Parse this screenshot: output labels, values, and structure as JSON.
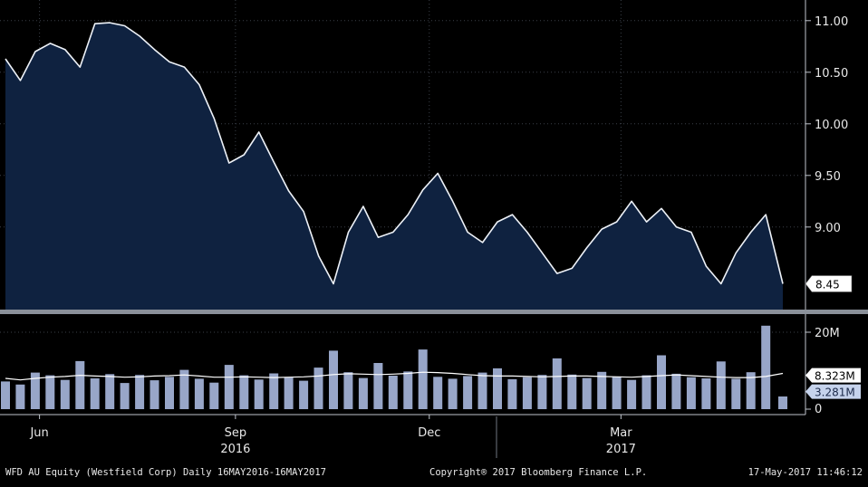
{
  "chart_data": [
    {
      "type": "area",
      "y_ticks": [
        "11.00",
        "10.50",
        "10.00",
        "9.50",
        "9.00"
      ],
      "ylim": [
        8.2,
        11.2
      ],
      "last_value_label": "8.45",
      "x_month_labels": [
        "Jun",
        "Sep",
        "Dec",
        "Mar"
      ],
      "x_year_labels": [
        "2016",
        "2017"
      ],
      "x": [
        "2016-05-16",
        "2016-05-23",
        "2016-05-30",
        "2016-06-06",
        "2016-06-13",
        "2016-06-20",
        "2016-06-27",
        "2016-07-04",
        "2016-07-11",
        "2016-07-18",
        "2016-07-25",
        "2016-08-01",
        "2016-08-08",
        "2016-08-15",
        "2016-08-22",
        "2016-08-29",
        "2016-09-05",
        "2016-09-12",
        "2016-09-19",
        "2016-09-26",
        "2016-10-03",
        "2016-10-10",
        "2016-10-17",
        "2016-10-24",
        "2016-10-31",
        "2016-11-07",
        "2016-11-14",
        "2016-11-21",
        "2016-11-28",
        "2016-12-05",
        "2016-12-12",
        "2016-12-19",
        "2016-12-26",
        "2017-01-02",
        "2017-01-09",
        "2017-01-16",
        "2017-01-23",
        "2017-01-30",
        "2017-02-06",
        "2017-02-13",
        "2017-02-20",
        "2017-02-27",
        "2017-03-06",
        "2017-03-13",
        "2017-03-20",
        "2017-03-27",
        "2017-04-03",
        "2017-04-10",
        "2017-04-17",
        "2017-04-24",
        "2017-05-01",
        "2017-05-08",
        "2017-05-16"
      ],
      "values": [
        10.63,
        10.42,
        10.7,
        10.78,
        10.72,
        10.55,
        10.97,
        10.98,
        10.95,
        10.85,
        10.72,
        10.6,
        10.55,
        10.38,
        10.05,
        9.62,
        9.7,
        9.92,
        9.63,
        9.35,
        9.15,
        8.72,
        8.45,
        8.95,
        9.2,
        8.9,
        8.95,
        9.12,
        9.36,
        9.52,
        9.25,
        8.95,
        8.85,
        9.05,
        9.12,
        8.95,
        8.75,
        8.55,
        8.6,
        8.8,
        8.98,
        9.05,
        9.25,
        9.05,
        9.18,
        9.0,
        8.95,
        8.62,
        8.45,
        8.75,
        8.95,
        9.12,
        8.45
      ]
    },
    {
      "type": "bar",
      "y_ticks": [
        "20M"
      ],
      "zero_tick": "0",
      "ylim": [
        0,
        24
      ],
      "avg_label": "8.323M",
      "last_label": "3.281M",
      "series": [
        {
          "values": [
            7.2,
            6.4,
            9.5,
            8.8,
            7.6,
            12.5,
            8.0,
            9.1,
            6.8,
            8.9,
            7.5,
            8.4,
            10.2,
            7.9,
            6.9,
            11.5,
            8.8,
            7.7,
            9.3,
            8.2,
            7.4,
            10.8,
            15.2,
            9.6,
            8.1,
            12.0,
            8.7,
            9.8,
            15.5,
            8.4,
            7.9,
            8.6,
            9.5,
            10.6,
            7.8,
            8.3,
            8.9,
            13.2,
            9.0,
            8.1,
            9.7,
            8.5,
            7.6,
            8.8,
            14.0,
            9.2,
            8.3,
            8.0,
            12.4,
            7.9,
            9.6,
            21.7,
            3.3
          ]
        },
        {
          "values": [
            8.0,
            7.6,
            8.0,
            8.3,
            8.5,
            8.8,
            8.6,
            8.5,
            8.3,
            8.4,
            8.6,
            8.7,
            8.9,
            8.6,
            8.3,
            8.3,
            8.4,
            8.3,
            8.2,
            8.3,
            8.4,
            8.6,
            9.0,
            9.2,
            9.1,
            9.0,
            9.1,
            9.3,
            9.6,
            9.5,
            9.3,
            9.0,
            8.7,
            8.6,
            8.6,
            8.5,
            8.4,
            8.5,
            8.6,
            8.6,
            8.5,
            8.4,
            8.3,
            8.5,
            8.7,
            8.9,
            8.7,
            8.5,
            8.3,
            8.2,
            8.2,
            8.5,
            9.3
          ]
        }
      ]
    }
  ],
  "footer": {
    "left": "WFD AU Equity (Westfield Corp) Daily 16MAY2016-16MAY2017",
    "center": "Copyright® 2017 Bloomberg Finance L.P.",
    "right": "17-May-2017 11:46:12"
  },
  "colors": {
    "background": "#000000",
    "area_fill": "#0f2240",
    "price_line": "#eef2f8",
    "volume_bar": "#98a6c8",
    "volume_avg_line": "#ffffff",
    "last_tag": "#c6d3ec",
    "separator": "#8a9099"
  }
}
